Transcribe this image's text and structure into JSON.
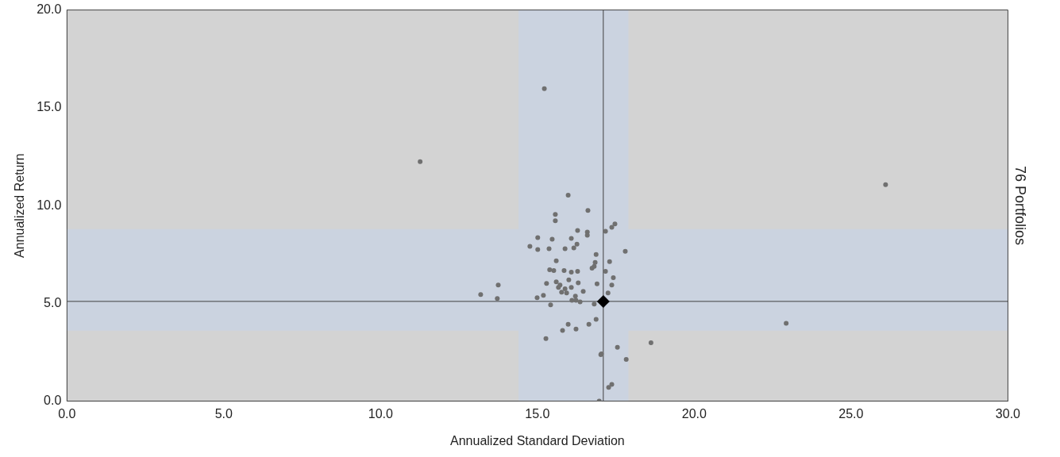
{
  "chart_data": {
    "type": "scatter",
    "xlabel": "Annualized Standard Deviation",
    "ylabel": "Annualized Return",
    "y2label": "76 Portfolios",
    "xlim": [
      0,
      30
    ],
    "ylim": [
      0,
      20
    ],
    "xticks": [
      {
        "value": 0,
        "label": "0.0"
      },
      {
        "value": 5,
        "label": "5.0"
      },
      {
        "value": 10,
        "label": "10.0"
      },
      {
        "value": 15,
        "label": "15.0"
      },
      {
        "value": 20,
        "label": "20.0"
      },
      {
        "value": 25,
        "label": "25.0"
      },
      {
        "value": 30,
        "label": "30.0"
      }
    ],
    "yticks": [
      {
        "value": 0,
        "label": "0.0"
      },
      {
        "value": 5,
        "label": "5.0"
      },
      {
        "value": 10,
        "label": "10.0"
      },
      {
        "value": 15,
        "label": "15.0"
      },
      {
        "value": 20,
        "label": "20.0"
      }
    ],
    "grid": false,
    "legend": false,
    "bands": [
      {
        "axis": "x",
        "from": 14.4,
        "to": 17.9,
        "color": "#cbd3e0"
      },
      {
        "axis": "y",
        "from": 3.6,
        "to": 8.8,
        "color": "#cbd3e0"
      }
    ],
    "ref_lines": [
      {
        "axis": "x",
        "value": 17.1,
        "color": "#404040"
      },
      {
        "axis": "y",
        "value": 5.1,
        "color": "#404040"
      }
    ],
    "series": [
      {
        "color": "#707070",
        "marker": "circle",
        "x": [
          15.22,
          11.26,
          26.1,
          22.93,
          18.62,
          13.19,
          13.72,
          13.75,
          15.98,
          16.61,
          15.57,
          15.57,
          17.47,
          17.37,
          17.17,
          16.28,
          16.59,
          16.59,
          15.01,
          15.47,
          16.08,
          16.26,
          14.76,
          15.01,
          15.37,
          15.88,
          16.16,
          17.8,
          16.87,
          15.6,
          17.3,
          16.84,
          16.81,
          16.74,
          15.39,
          15.52,
          15.85,
          16.08,
          16.28,
          17.17,
          17.42,
          15.29,
          15.72,
          15.67,
          15.88,
          16.08,
          15.77,
          15.93,
          16.46,
          17.37,
          17.25,
          15.19,
          14.99,
          16.21,
          16.1,
          16.23,
          16.36,
          15.42,
          16.81,
          15.98,
          16.64,
          16.87,
          15.8,
          16.23,
          15.27,
          17.55,
          17.83,
          17.02,
          17.04,
          17.37,
          17.27,
          16.97,
          15.6,
          16.3,
          16.9,
          16.0
        ],
        "values": [
          15.98,
          12.25,
          11.07,
          3.98,
          2.99,
          5.45,
          5.25,
          5.94,
          10.53,
          9.75,
          9.55,
          9.22,
          9.06,
          8.89,
          8.69,
          8.73,
          8.65,
          8.48,
          8.36,
          8.28,
          8.32,
          8.03,
          7.91,
          7.75,
          7.79,
          7.79,
          7.83,
          7.66,
          7.5,
          7.17,
          7.13,
          7.09,
          6.89,
          6.8,
          6.72,
          6.68,
          6.68,
          6.6,
          6.64,
          6.64,
          6.31,
          6.02,
          5.94,
          5.82,
          5.74,
          5.82,
          5.57,
          5.53,
          5.61,
          5.94,
          5.53,
          5.41,
          5.29,
          5.37,
          5.16,
          5.16,
          5.08,
          4.92,
          4.96,
          3.93,
          3.93,
          4.18,
          3.61,
          3.69,
          3.2,
          2.75,
          2.13,
          2.38,
          2.42,
          0.86,
          0.7,
          0.0,
          6.1,
          6.05,
          6.0,
          6.2
        ]
      },
      {
        "color": "#000000",
        "marker": "diamond",
        "x": [
          17.1
        ],
        "values": [
          5.1
        ]
      }
    ]
  }
}
